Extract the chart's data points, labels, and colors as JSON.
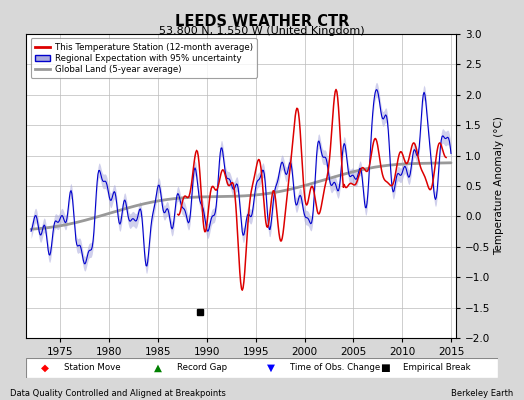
{
  "title": "LEEDS WEATHER CTR",
  "subtitle": "53.800 N, 1.550 W (United Kingdom)",
  "ylabel": "Temperature Anomaly (°C)",
  "xlabel_left": "Data Quality Controlled and Aligned at Breakpoints",
  "xlabel_right": "Berkeley Earth",
  "ylim": [
    -2.0,
    3.0
  ],
  "xlim": [
    1971.5,
    2015.5
  ],
  "yticks": [
    -2,
    -1.5,
    -1,
    -0.5,
    0,
    0.5,
    1,
    1.5,
    2,
    2.5,
    3
  ],
  "xticks": [
    1975,
    1980,
    1985,
    1990,
    1995,
    2000,
    2005,
    2010,
    2015
  ],
  "bg_color": "#d8d8d8",
  "plot_bg_color": "#ffffff",
  "grid_color": "#bbbbbb",
  "red_line_color": "#dd0000",
  "blue_line_color": "#0000cc",
  "blue_fill_color": "#aaaadd",
  "gray_line_color": "#999999",
  "empirical_break_year": 1989.25,
  "empirical_break_value": -1.58,
  "legend_entries": [
    "This Temperature Station (12-month average)",
    "Regional Expectation with 95% uncertainty",
    "Global Land (5-year average)"
  ]
}
